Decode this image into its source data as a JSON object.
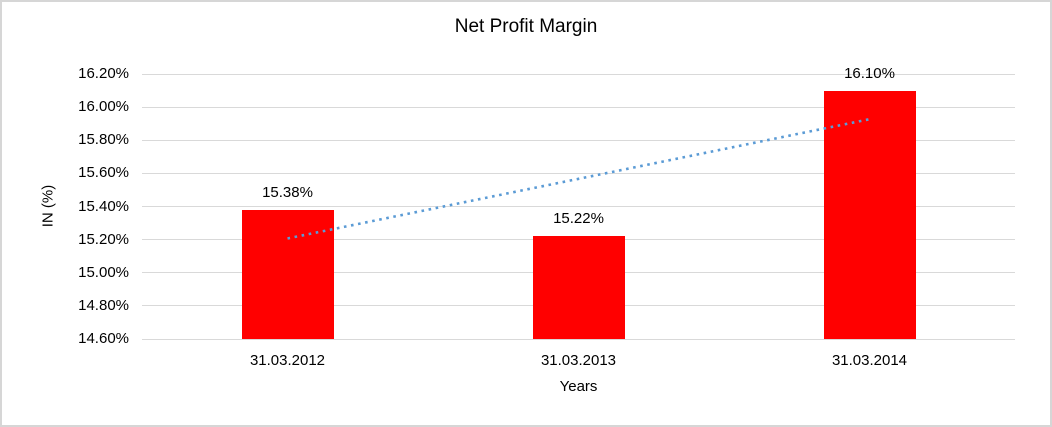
{
  "chart_data": {
    "type": "bar",
    "title": "Net Profit Margin",
    "xlabel": "Years",
    "ylabel": "IN (%)",
    "categories": [
      "31.03.2012",
      "31.03.2013",
      "31.03.2014"
    ],
    "values": [
      15.38,
      15.22,
      16.1
    ],
    "value_labels": [
      "15.38%",
      "15.22%",
      "16.10%"
    ],
    "ylim": [
      14.6,
      16.2
    ],
    "ytick_step": 0.2,
    "ytick_labels": [
      "14.60%",
      "14.80%",
      "15.00%",
      "15.20%",
      "15.40%",
      "15.60%",
      "15.80%",
      "16.00%",
      "16.20%"
    ],
    "grid": true,
    "legend": "none",
    "trendline": {
      "type": "linear",
      "style": "dotted",
      "start": 15.207,
      "end": 15.927
    },
    "colors": {
      "bar": "#ff0000",
      "trendline": "#5b9bd5",
      "gridline": "#d9d9d9",
      "text": "#000000",
      "frame_border": "#d6d6d6",
      "background": "#ffffff"
    }
  }
}
